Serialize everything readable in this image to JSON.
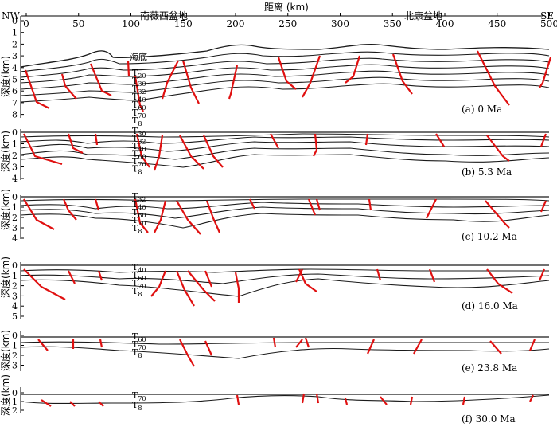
{
  "top_axis": {
    "left_end": "NW",
    "right_end": "SE",
    "title": "距离 (km)",
    "ticks": [
      "0",
      "50",
      "100",
      "150",
      "200",
      "250",
      "300",
      "350",
      "400",
      "450",
      "500"
    ],
    "basins": [
      "南薇西盆地",
      "北康盆地"
    ]
  },
  "depth_label": "深度(km)",
  "seafloor_label": "海底",
  "panels": [
    {
      "id": "a",
      "caption": "(a)    0 Ma",
      "depth_ticks": [
        "0",
        "1",
        "2",
        "3",
        "4",
        "5",
        "6",
        "7",
        "8"
      ],
      "horizons": [
        {
          "T": "T",
          "s": "20"
        },
        {
          "T": "T",
          "s": "30"
        },
        {
          "T": "T",
          "s": "32"
        },
        {
          "T": "T",
          "s": "40"
        },
        {
          "T": "T",
          "s": "60"
        },
        {
          "T": "T",
          "s": "70"
        },
        {
          "T": "T",
          "s": "8"
        }
      ]
    },
    {
      "id": "b",
      "caption": "(b)    5.3 Ma",
      "depth_ticks": [
        "0",
        "1",
        "2",
        "3",
        "4"
      ],
      "horizons": [
        {
          "T": "T",
          "s": "30"
        },
        {
          "T": "T",
          "s": "32"
        },
        {
          "T": "T",
          "s": "40"
        },
        {
          "T": "T",
          "s": "60"
        },
        {
          "T": "T",
          "s": "70"
        },
        {
          "T": "T",
          "s": "8"
        }
      ]
    },
    {
      "id": "c",
      "caption": "(c)    10.2 Ma",
      "depth_ticks": [
        "0",
        "1",
        "2",
        "3",
        "4"
      ],
      "horizons": [
        {
          "T": "T",
          "s": "32"
        },
        {
          "T": "T",
          "s": "40"
        },
        {
          "T": "T",
          "s": "60"
        },
        {
          "T": "T",
          "s": "70"
        },
        {
          "T": "T",
          "s": "8"
        }
      ]
    },
    {
      "id": "d",
      "caption": "(d)    16.0 Ma",
      "depth_ticks": [
        "0",
        "1",
        "2",
        "3",
        "4",
        "5"
      ],
      "horizons": [
        {
          "T": "T",
          "s": "40"
        },
        {
          "T": "T",
          "s": "60"
        },
        {
          "T": "T",
          "s": "70"
        },
        {
          "T": "T",
          "s": "8"
        }
      ]
    },
    {
      "id": "e",
      "caption": "(e)    23.8 Ma",
      "depth_ticks": [
        "0",
        "1",
        "2",
        "3"
      ],
      "horizons": [
        {
          "T": "T",
          "s": "60"
        },
        {
          "T": "T",
          "s": "70"
        },
        {
          "T": "T",
          "s": "8"
        }
      ]
    },
    {
      "id": "f",
      "caption": "(f)    30.0 Ma",
      "depth_ticks": [
        "0",
        "1",
        "2"
      ],
      "horizons": [
        {
          "T": "T",
          "s": "70"
        },
        {
          "T": "T",
          "s": "8"
        }
      ]
    }
  ],
  "colors": {
    "fault": "#e01010",
    "horizon": "#1a1a1a"
  }
}
